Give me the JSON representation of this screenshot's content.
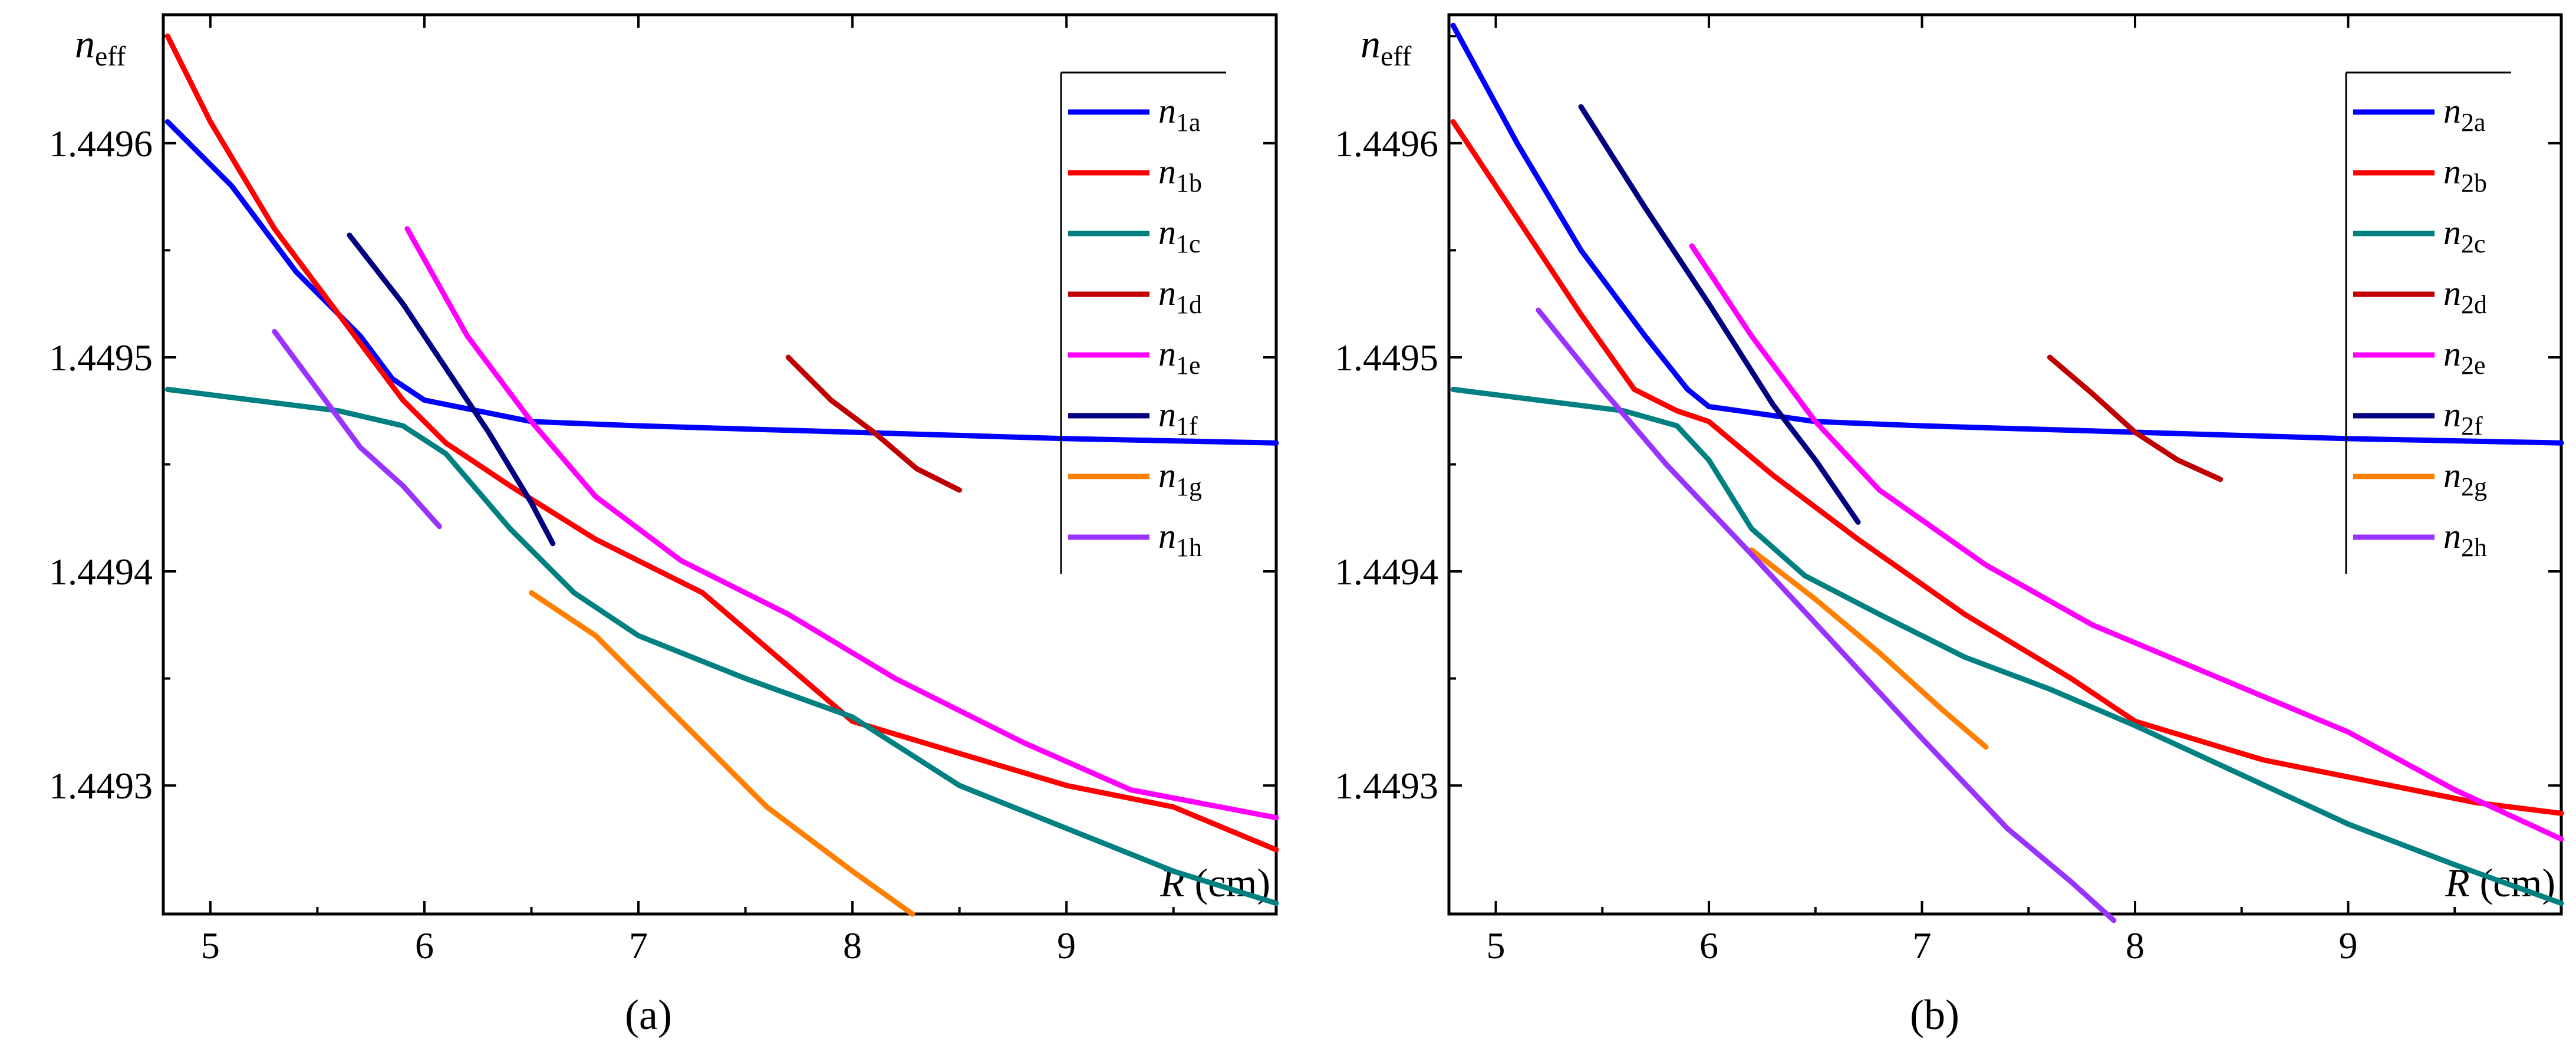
{
  "chart_data": [
    {
      "type": "line",
      "panel": "a",
      "caption": "(a)",
      "ylabel": "n",
      "ylabel_sub": "eff",
      "xlabel": "R (cm)",
      "xlim": [
        4.78,
        9.98
      ],
      "ylim": [
        1.44924,
        1.44966
      ],
      "xticks": [
        5,
        6,
        7,
        8,
        9
      ],
      "yticks": [
        1.4493,
        1.4494,
        1.4495,
        1.4496
      ],
      "ytick_labels": [
        "1.4493",
        "1.4494",
        "1.4495",
        "1.4496"
      ],
      "legend_position": "top-right",
      "series": [
        {
          "name": "n",
          "sub": "1a",
          "color": "#0000ff",
          "points": [
            [
              4.8,
              1.44961
            ],
            [
              5.1,
              1.44958
            ],
            [
              5.4,
              1.44954
            ],
            [
              5.7,
              1.44951
            ],
            [
              5.85,
              1.44949
            ],
            [
              6.0,
              1.44948
            ],
            [
              6.5,
              1.44947
            ],
            [
              7.0,
              1.449468
            ],
            [
              8.0,
              1.449465
            ],
            [
              9.0,
              1.449462
            ],
            [
              9.98,
              1.44946
            ]
          ]
        },
        {
          "name": "n",
          "sub": "1b",
          "color": "#ff0000",
          "points": [
            [
              4.8,
              1.44965
            ],
            [
              5.0,
              1.44961
            ],
            [
              5.3,
              1.44956
            ],
            [
              5.6,
              1.44952
            ],
            [
              5.9,
              1.44948
            ],
            [
              6.1,
              1.44946
            ],
            [
              6.4,
              1.44944
            ],
            [
              6.8,
              1.449415
            ],
            [
              7.3,
              1.44939
            ],
            [
              8.0,
              1.44933
            ],
            [
              8.5,
              1.449315
            ],
            [
              9.0,
              1.4493
            ],
            [
              9.5,
              1.44929
            ],
            [
              9.98,
              1.44927
            ]
          ]
        },
        {
          "name": "n",
          "sub": "1c",
          "color": "#008080",
          "points": [
            [
              4.8,
              1.449485
            ],
            [
              5.2,
              1.44948
            ],
            [
              5.6,
              1.449475
            ],
            [
              5.9,
              1.449468
            ],
            [
              6.1,
              1.449455
            ],
            [
              6.4,
              1.44942
            ],
            [
              6.7,
              1.44939
            ],
            [
              7.0,
              1.44937
            ],
            [
              7.5,
              1.44935
            ],
            [
              8.0,
              1.449332
            ],
            [
              8.5,
              1.4493
            ],
            [
              9.0,
              1.44928
            ],
            [
              9.5,
              1.44926
            ],
            [
              9.98,
              1.449245
            ]
          ]
        },
        {
          "name": "n",
          "sub": "1d",
          "color": "#c00000",
          "points": [
            [
              7.7,
              1.4495
            ],
            [
              7.9,
              1.44948
            ],
            [
              8.1,
              1.449465
            ],
            [
              8.3,
              1.449448
            ],
            [
              8.5,
              1.449438
            ]
          ]
        },
        {
          "name": "n",
          "sub": "1e",
          "color": "#ff00ff",
          "points": [
            [
              5.92,
              1.44956
            ],
            [
              6.2,
              1.44951
            ],
            [
              6.5,
              1.44947
            ],
            [
              6.8,
              1.449435
            ],
            [
              7.2,
              1.449405
            ],
            [
              7.7,
              1.44938
            ],
            [
              8.2,
              1.44935
            ],
            [
              8.8,
              1.44932
            ],
            [
              9.3,
              1.449298
            ],
            [
              9.98,
              1.449285
            ]
          ]
        },
        {
          "name": "n",
          "sub": "1f",
          "color": "#000080",
          "points": [
            [
              5.65,
              1.449557
            ],
            [
              5.9,
              1.449525
            ],
            [
              6.1,
              1.449495
            ],
            [
              6.3,
              1.449465
            ],
            [
              6.5,
              1.449432
            ],
            [
              6.6,
              1.449413
            ]
          ]
        },
        {
          "name": "n",
          "sub": "1g",
          "color": "#ff8000",
          "points": [
            [
              6.5,
              1.44939
            ],
            [
              6.8,
              1.44937
            ],
            [
              7.2,
              1.44933
            ],
            [
              7.6,
              1.44929
            ],
            [
              8.0,
              1.44926
            ],
            [
              8.28,
              1.44924
            ]
          ]
        },
        {
          "name": "n",
          "sub": "1h",
          "color": "#9933ff",
          "points": [
            [
              5.3,
              1.449512
            ],
            [
              5.5,
              1.449485
            ],
            [
              5.7,
              1.449458
            ],
            [
              5.9,
              1.44944
            ],
            [
              6.07,
              1.449421
            ]
          ]
        }
      ]
    },
    {
      "type": "line",
      "panel": "b",
      "caption": "(b)",
      "ylabel": "n",
      "ylabel_sub": "eff",
      "xlabel": "R (cm)",
      "xlim": [
        4.78,
        10.0
      ],
      "ylim": [
        1.44924,
        1.44966
      ],
      "xticks": [
        5,
        6,
        7,
        8,
        9
      ],
      "yticks": [
        1.4493,
        1.4494,
        1.4495,
        1.4496
      ],
      "ytick_labels": [
        "1.4493",
        "1.4494",
        "1.4495",
        "1.4496"
      ],
      "legend_position": "top-right",
      "series": [
        {
          "name": "n",
          "sub": "2a",
          "color": "#0000ff",
          "points": [
            [
              4.8,
              1.449655
            ],
            [
              5.1,
              1.4496
            ],
            [
              5.4,
              1.44955
            ],
            [
              5.7,
              1.44951
            ],
            [
              5.9,
              1.449485
            ],
            [
              6.0,
              1.449477
            ],
            [
              6.5,
              1.44947
            ],
            [
              7.0,
              1.449468
            ],
            [
              8.0,
              1.449465
            ],
            [
              9.0,
              1.449462
            ],
            [
              10.0,
              1.44946
            ]
          ]
        },
        {
          "name": "n",
          "sub": "2b",
          "color": "#ff0000",
          "points": [
            [
              4.8,
              1.44961
            ],
            [
              5.1,
              1.449565
            ],
            [
              5.4,
              1.44952
            ],
            [
              5.65,
              1.449485
            ],
            [
              5.85,
              1.449475
            ],
            [
              6.0,
              1.44947
            ],
            [
              6.3,
              1.449445
            ],
            [
              6.7,
              1.449415
            ],
            [
              7.2,
              1.44938
            ],
            [
              7.7,
              1.44935
            ],
            [
              8.0,
              1.44933
            ],
            [
              8.6,
              1.449312
            ],
            [
              9.2,
              1.4493
            ],
            [
              9.6,
              1.449292
            ],
            [
              10.0,
              1.449287
            ]
          ]
        },
        {
          "name": "n",
          "sub": "2c",
          "color": "#008080",
          "points": [
            [
              4.8,
              1.449485
            ],
            [
              5.2,
              1.44948
            ],
            [
              5.6,
              1.449475
            ],
            [
              5.85,
              1.449468
            ],
            [
              6.0,
              1.449452
            ],
            [
              6.2,
              1.44942
            ],
            [
              6.45,
              1.449398
            ],
            [
              6.8,
              1.44938
            ],
            [
              7.2,
              1.44936
            ],
            [
              7.6,
              1.449345
            ],
            [
              8.0,
              1.449328
            ],
            [
              8.5,
              1.449305
            ],
            [
              9.0,
              1.449282
            ],
            [
              9.5,
              1.449263
            ],
            [
              10.0,
              1.449245
            ]
          ]
        },
        {
          "name": "n",
          "sub": "2d",
          "color": "#c00000",
          "points": [
            [
              7.6,
              1.4495
            ],
            [
              7.8,
              1.449483
            ],
            [
              8.0,
              1.449465
            ],
            [
              8.2,
              1.449452
            ],
            [
              8.4,
              1.449443
            ]
          ]
        },
        {
          "name": "n",
          "sub": "2e",
          "color": "#ff00ff",
          "points": [
            [
              5.92,
              1.449552
            ],
            [
              6.2,
              1.44951
            ],
            [
              6.5,
              1.44947
            ],
            [
              6.8,
              1.449438
            ],
            [
              7.3,
              1.449403
            ],
            [
              7.8,
              1.449375
            ],
            [
              8.4,
              1.44935
            ],
            [
              9.0,
              1.449325
            ],
            [
              9.5,
              1.449298
            ],
            [
              10.0,
              1.449275
            ]
          ]
        },
        {
          "name": "n",
          "sub": "2f",
          "color": "#000080",
          "points": [
            [
              5.4,
              1.449617
            ],
            [
              5.7,
              1.44957
            ],
            [
              6.0,
              1.449525
            ],
            [
              6.3,
              1.449478
            ],
            [
              6.5,
              1.449452
            ],
            [
              6.7,
              1.449423
            ]
          ]
        },
        {
          "name": "n",
          "sub": "2g",
          "color": "#ff8000",
          "points": [
            [
              6.2,
              1.44941
            ],
            [
              6.5,
              1.449387
            ],
            [
              6.8,
              1.449362
            ],
            [
              7.1,
              1.449335
            ],
            [
              7.3,
              1.449318
            ]
          ]
        },
        {
          "name": "n",
          "sub": "2h",
          "color": "#9933ff",
          "points": [
            [
              5.2,
              1.449522
            ],
            [
              5.5,
              1.449485
            ],
            [
              5.8,
              1.44945
            ],
            [
              6.2,
              1.449408
            ],
            [
              6.6,
              1.449365
            ],
            [
              7.0,
              1.449322
            ],
            [
              7.4,
              1.44928
            ],
            [
              7.7,
              1.449255
            ],
            [
              7.9,
              1.449237
            ]
          ]
        }
      ]
    }
  ]
}
